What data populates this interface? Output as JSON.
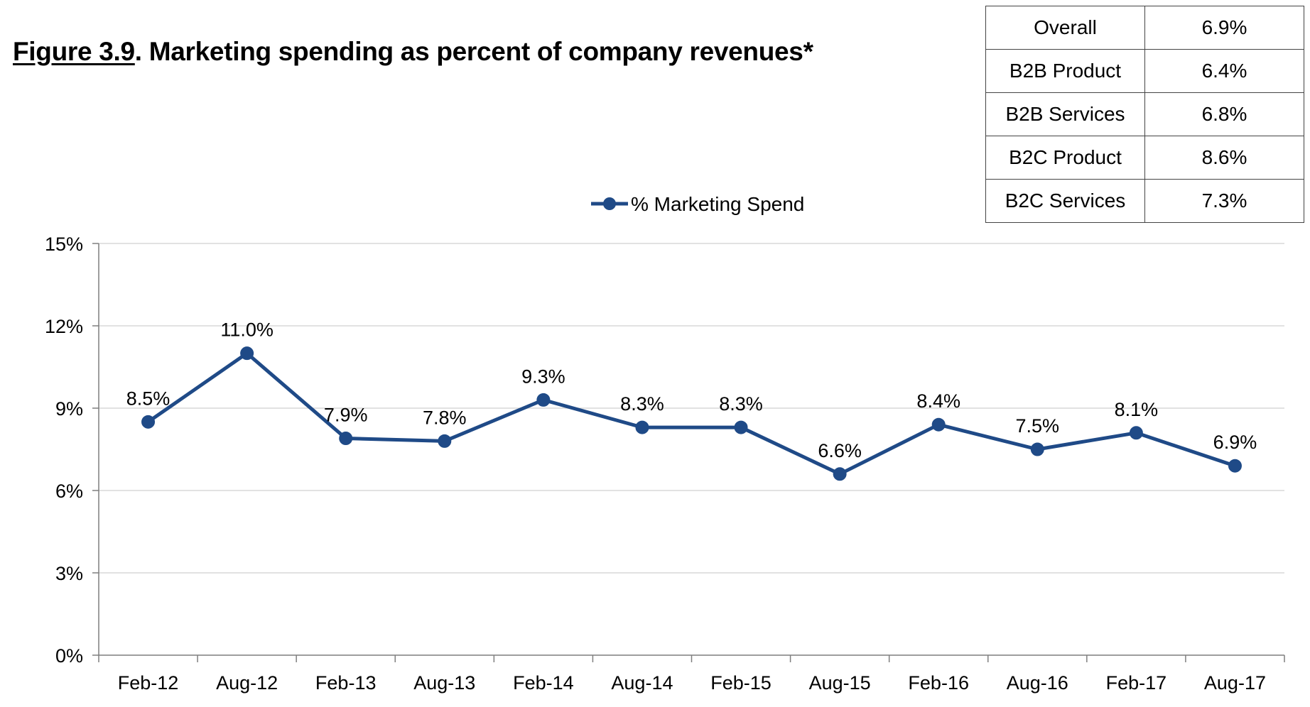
{
  "figure": {
    "number": "Figure 3.9",
    "title": ".  Marketing spending as percent of company revenues*"
  },
  "summary_table": {
    "rows": [
      {
        "label": "Overall",
        "value": "6.9%"
      },
      {
        "label": "B2B Product",
        "value": "6.4%"
      },
      {
        "label": "B2B Services",
        "value": "6.8%"
      },
      {
        "label": "B2C Product",
        "value": "8.6%"
      },
      {
        "label": "B2C Services",
        "value": "7.3%"
      }
    ]
  },
  "colors": {
    "series": "#1f4a87",
    "gridline": "#d9d9d9",
    "axis": "#7f7f7f"
  },
  "chart_data": {
    "type": "line",
    "title": "Marketing spending as percent of company revenues*",
    "xlabel": "",
    "ylabel": "",
    "categories": [
      "Feb-12",
      "Aug-12",
      "Feb-13",
      "Aug-13",
      "Feb-14",
      "Aug-14",
      "Feb-15",
      "Aug-15",
      "Feb-16",
      "Aug-16",
      "Feb-17",
      "Aug-17"
    ],
    "series": [
      {
        "name": "% Marketing Spend",
        "values": [
          8.5,
          11.0,
          7.9,
          7.8,
          9.3,
          8.3,
          8.3,
          6.6,
          8.4,
          7.5,
          8.1,
          6.9
        ],
        "labels": [
          "8.5%",
          "11.0%",
          "7.9%",
          "7.8%",
          "9.3%",
          "8.3%",
          "8.3%",
          "6.6%",
          "8.4%",
          "7.5%",
          "8.1%",
          "6.9%"
        ]
      }
    ],
    "ylim": [
      0,
      15
    ],
    "yticks": [
      0,
      3,
      6,
      9,
      12,
      15
    ],
    "ytick_labels": [
      "0%",
      "3%",
      "6%",
      "9%",
      "12%",
      "15%"
    ],
    "grid": true,
    "legend_position": "top-center"
  }
}
